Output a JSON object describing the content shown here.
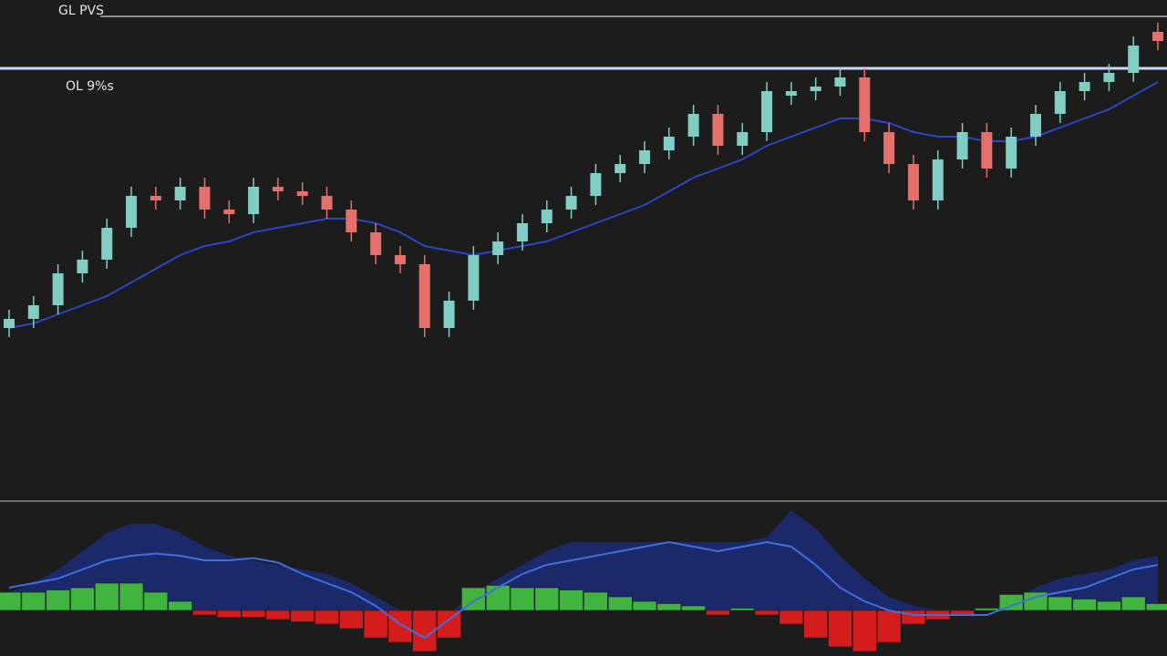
{
  "chart_data": {
    "type": "candlestick",
    "levels": [
      {
        "label": "GL PVS",
        "value": 106.4
      },
      {
        "label": "OL 9%s",
        "value": 95
      }
    ],
    "ylim": [
      0,
      110
    ],
    "up_color": "#80cdc3",
    "down_color": "#e5706b",
    "ma_color": "#2b45c8",
    "ohlc": [
      [
        38,
        42,
        36,
        40
      ],
      [
        40,
        45,
        38,
        43
      ],
      [
        43,
        52,
        41,
        50
      ],
      [
        50,
        55,
        48,
        53
      ],
      [
        53,
        62,
        51,
        60
      ],
      [
        60,
        69,
        58,
        67
      ],
      [
        67,
        69,
        64,
        66
      ],
      [
        66,
        71,
        64,
        69
      ],
      [
        69,
        71,
        62,
        64
      ],
      [
        64,
        66,
        61,
        63
      ],
      [
        63,
        71,
        61,
        69
      ],
      [
        69,
        71,
        66,
        68
      ],
      [
        68,
        70,
        65,
        67
      ],
      [
        67,
        69,
        62,
        64
      ],
      [
        64,
        66,
        57,
        59
      ],
      [
        59,
        61,
        52,
        54
      ],
      [
        54,
        56,
        50,
        52
      ],
      [
        52,
        54,
        36,
        38
      ],
      [
        38,
        46,
        36,
        44
      ],
      [
        44,
        56,
        42,
        54
      ],
      [
        54,
        59,
        52,
        57
      ],
      [
        57,
        63,
        55,
        61
      ],
      [
        61,
        66,
        59,
        64
      ],
      [
        64,
        69,
        62,
        67
      ],
      [
        67,
        74,
        65,
        72
      ],
      [
        72,
        76,
        70,
        74
      ],
      [
        74,
        79,
        72,
        77
      ],
      [
        77,
        82,
        75,
        80
      ],
      [
        80,
        87,
        78,
        85
      ],
      [
        85,
        87,
        76,
        78
      ],
      [
        78,
        83,
        76,
        81
      ],
      [
        81,
        92,
        79,
        90
      ],
      [
        89,
        92,
        87,
        90
      ],
      [
        90,
        93,
        88,
        91
      ],
      [
        91,
        95,
        89,
        93
      ],
      [
        93,
        95,
        79,
        81
      ],
      [
        81,
        83,
        72,
        74
      ],
      [
        74,
        76,
        64,
        66
      ],
      [
        66,
        77,
        64,
        75
      ],
      [
        75,
        83,
        73,
        81
      ],
      [
        81,
        83,
        71,
        73
      ],
      [
        73,
        82,
        71,
        80
      ],
      [
        80,
        87,
        78,
        85
      ],
      [
        85,
        92,
        83,
        90
      ],
      [
        90,
        94,
        88,
        92
      ],
      [
        92,
        96,
        90,
        94
      ],
      [
        94,
        102,
        92,
        100
      ],
      [
        103,
        105,
        99,
        101
      ]
    ],
    "ma": [
      38,
      39,
      41,
      43,
      45,
      48,
      51,
      54,
      56,
      57,
      59,
      60,
      61,
      62,
      62,
      61,
      59,
      56,
      55,
      54,
      55,
      56,
      57,
      59,
      61,
      63,
      65,
      68,
      71,
      73,
      75,
      78,
      80,
      82,
      84,
      84,
      83,
      81,
      80,
      80,
      79,
      79,
      80,
      82,
      84,
      86,
      89,
      92
    ],
    "indicator": {
      "ylim": [
        -10,
        22
      ],
      "pos_color": "#3fb53f",
      "neg_color": "#d41c1c",
      "line_color": "#3f6fe0",
      "area_color": "#1b2a78",
      "histogram": [
        4,
        4,
        4.5,
        5,
        6,
        6,
        4,
        2,
        -1,
        -1.5,
        -1.5,
        -2,
        -2.5,
        -3,
        -4,
        -6,
        -7,
        -9,
        -6,
        5,
        5.5,
        5,
        5,
        4.5,
        4,
        3,
        2,
        1.5,
        1,
        -1,
        0.5,
        -1,
        -3,
        -6,
        -8,
        -9,
        -7,
        -3,
        -2,
        -1,
        0.5,
        3.5,
        4,
        3,
        2.5,
        2,
        3,
        1.5
      ],
      "line": [
        5,
        6,
        7,
        9,
        11,
        12,
        12.5,
        12,
        11,
        11,
        11.5,
        10.5,
        8,
        6,
        4,
        1,
        -3,
        -6,
        -2,
        2,
        5,
        8,
        10,
        11,
        12,
        13,
        14,
        15,
        14,
        13,
        14,
        15,
        14,
        10,
        5,
        2,
        0,
        -1,
        -1,
        -1,
        -1,
        1,
        3,
        4,
        5,
        7,
        9,
        10
      ],
      "signal": [
        4,
        6,
        9,
        13,
        17,
        19,
        19,
        17,
        14,
        12,
        11,
        10,
        9,
        8,
        6,
        3,
        0,
        -4,
        -1,
        4,
        7,
        10,
        13,
        15,
        15,
        15,
        15,
        15,
        15,
        15,
        15,
        16,
        22,
        18,
        12,
        7,
        3,
        1,
        0,
        0,
        0,
        2,
        5,
        7,
        8,
        9,
        11,
        12
      ]
    }
  }
}
